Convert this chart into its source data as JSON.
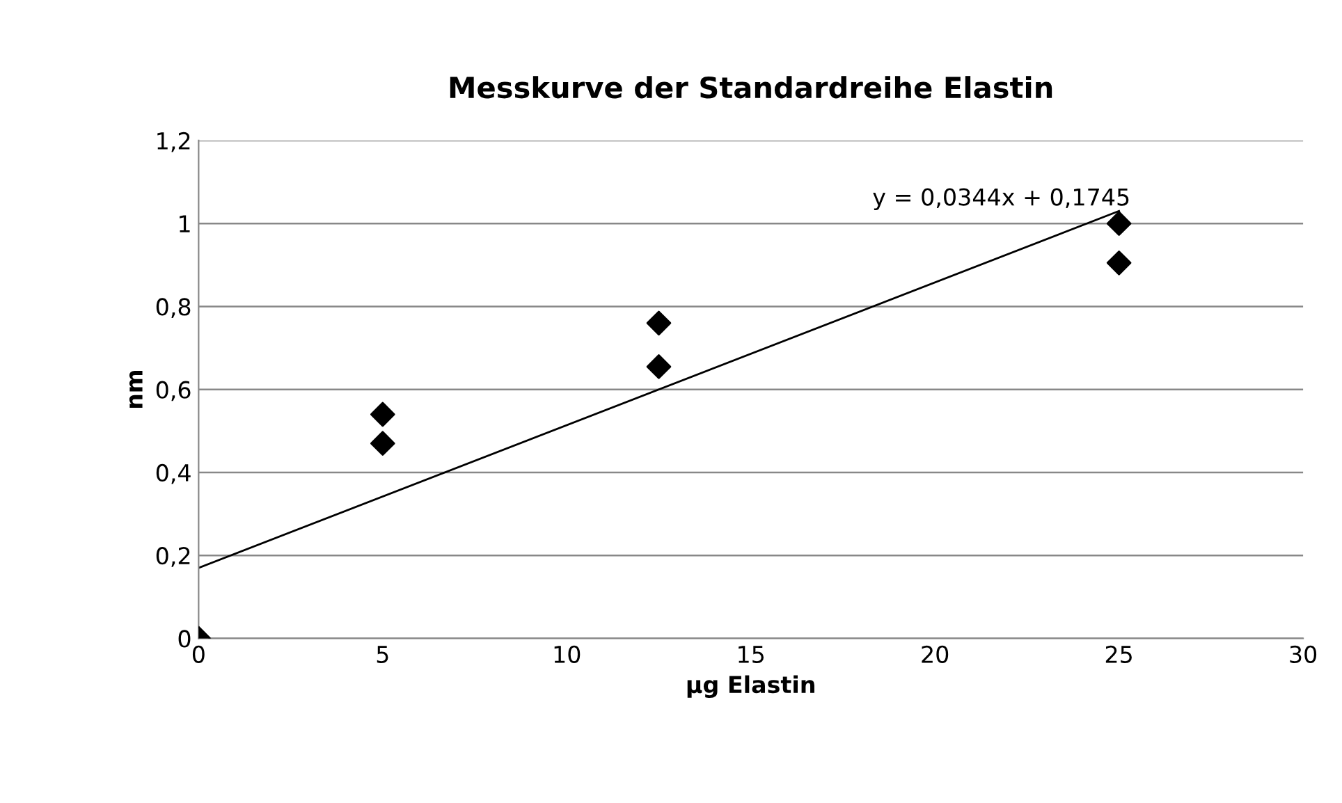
{
  "chart_data": {
    "type": "scatter",
    "title": "Messkurve der Standardreihe Elastin",
    "xlabel": "µg Elastin",
    "ylabel": "nm",
    "series": [
      {
        "color": "#000000",
        "marker": "diamond",
        "x": [
          0,
          5,
          5,
          12.5,
          12.5,
          25,
          25
        ],
        "values": [
          0,
          0.54,
          0.47,
          0.76,
          0.655,
          1.0,
          0.905
        ]
      },
      {
        "type": "line",
        "color": "#000000",
        "marker": "none",
        "x": [
          0,
          25
        ],
        "values": [
          0.17,
          1.03
        ]
      }
    ],
    "annotations": [
      "y = 0,0344x + 0,1745"
    ],
    "xlim": [
      0,
      30
    ],
    "xticks": [
      0,
      5,
      10,
      15,
      20,
      25,
      30
    ],
    "ylim": [
      0,
      1.2
    ],
    "yticks": [
      {
        "value": 0,
        "label": "0"
      },
      {
        "value": 0.2,
        "label": "0,2"
      },
      {
        "value": 0.4,
        "label": "0,4"
      },
      {
        "value": 0.6,
        "label": "0,6"
      },
      {
        "value": 0.8,
        "label": "0,8"
      },
      {
        "value": 1,
        "label": "1"
      },
      {
        "value": 1.2,
        "label": "1,2"
      }
    ],
    "grid": "y",
    "legend": false
  }
}
